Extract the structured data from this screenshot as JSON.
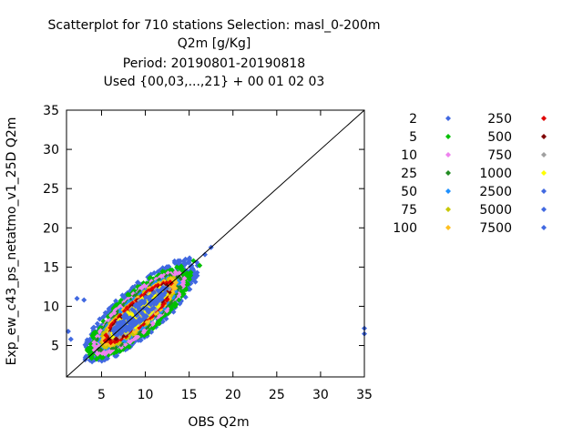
{
  "chart_data": {
    "type": "scatter",
    "title_lines": [
      "Scatterplot for  710 stations Selection: masl_0-200m",
      "Q2m [g/Kg]",
      "Period: 20190801-20190818",
      "Used {00,03,...,21} + 00 01 02 03"
    ],
    "xlabel": "OBS Q2m",
    "ylabel": "Exp_ew_c43_ps_netatmo_v1_25D Q2m",
    "xlim": [
      1,
      35
    ],
    "ylim": [
      1,
      35
    ],
    "xticks": [
      "5",
      "10",
      "15",
      "20",
      "25",
      "30",
      "35"
    ],
    "yticks": [
      "5",
      "10",
      "15",
      "20",
      "25",
      "30",
      "35"
    ],
    "diagonal": true,
    "legend": [
      {
        "label": "2",
        "color": "#4169e1"
      },
      {
        "label": "5",
        "color": "#00c000"
      },
      {
        "label": "10",
        "color": "#ee82ee"
      },
      {
        "label": "25",
        "color": "#228b22"
      },
      {
        "label": "50",
        "color": "#1e90ff"
      },
      {
        "label": "75",
        "color": "#c8c800"
      },
      {
        "label": "100",
        "color": "#ffc020"
      },
      {
        "label": "250",
        "color": "#e00000"
      },
      {
        "label": "500",
        "color": "#800000"
      },
      {
        "label": "750",
        "color": "#a0a0a0"
      },
      {
        "label": "1000",
        "color": "#ffff00"
      },
      {
        "label": "2500",
        "color": "#4169e1"
      },
      {
        "label": "5000",
        "color": "#4169e1"
      },
      {
        "label": "7500",
        "color": "#4169e1"
      }
    ],
    "density_layers": [
      {
        "name": "2",
        "color": "#4169e1",
        "center": [
          9.5,
          9.5
        ],
        "major": 9.0,
        "minor": 2.9
      },
      {
        "name": "5",
        "color": "#00c000",
        "center": [
          9.3,
          9.2
        ],
        "major": 8.0,
        "minor": 2.6
      },
      {
        "name": "10",
        "color": "#ee82ee",
        "center": [
          9.3,
          9.2
        ],
        "major": 7.2,
        "minor": 2.2
      },
      {
        "name": "25",
        "color": "#228b22",
        "center": [
          9.3,
          9.2
        ],
        "major": 6.6,
        "minor": 1.95
      },
      {
        "name": "50",
        "color": "#1e90ff",
        "center": [
          9.3,
          9.2
        ],
        "major": 6.2,
        "minor": 1.8
      },
      {
        "name": "75",
        "color": "#c8c800",
        "center": [
          9.3,
          9.2
        ],
        "major": 6.0,
        "minor": 1.65
      },
      {
        "name": "100",
        "color": "#ffc020",
        "center": [
          9.3,
          9.2
        ],
        "major": 5.8,
        "minor": 1.55
      },
      {
        "name": "250",
        "color": "#e00000",
        "center": [
          9.3,
          9.2
        ],
        "major": 5.4,
        "minor": 1.4
      },
      {
        "name": "500",
        "color": "#800000",
        "center": [
          9.3,
          9.2
        ],
        "major": 5.0,
        "minor": 1.2
      },
      {
        "name": "750",
        "color": "#a0a0a0",
        "center": [
          9.3,
          9.2
        ],
        "major": 4.8,
        "minor": 1.12
      },
      {
        "name": "1000",
        "color": "#ffff00",
        "center": [
          9.3,
          9.2
        ],
        "major": 4.6,
        "minor": 1.05
      },
      {
        "name": "2500",
        "color": "#4169e1",
        "center": [
          9.3,
          9.2
        ],
        "major": 4.4,
        "minor": 1.0
      }
    ],
    "outliers": [
      {
        "x": 35,
        "y": 7.2,
        "color": "#4169e1"
      },
      {
        "x": 35,
        "y": 6.5,
        "color": "#4169e1"
      },
      {
        "x": 1.2,
        "y": 6.8,
        "color": "#4169e1"
      },
      {
        "x": 1.5,
        "y": 5.8,
        "color": "#4169e1"
      },
      {
        "x": 17.5,
        "y": 17.5,
        "color": "#4169e1"
      },
      {
        "x": 16.8,
        "y": 16.6,
        "color": "#4169e1"
      },
      {
        "x": 3.0,
        "y": 10.8,
        "color": "#4169e1"
      },
      {
        "x": 2.2,
        "y": 11.0,
        "color": "#4169e1"
      },
      {
        "x": 15.5,
        "y": 15.8,
        "color": "#00c000"
      },
      {
        "x": 16.2,
        "y": 15.2,
        "color": "#00c000"
      }
    ]
  }
}
